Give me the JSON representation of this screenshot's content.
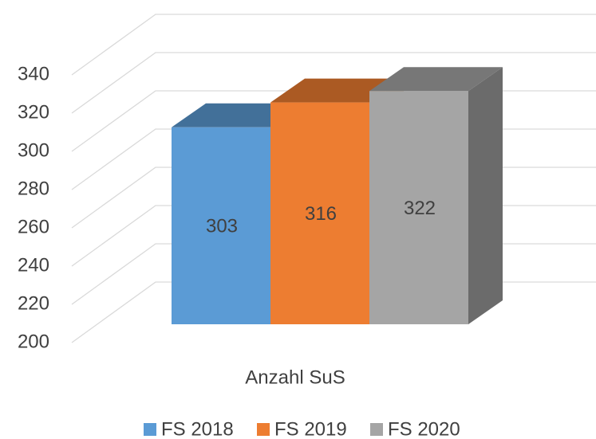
{
  "chart_data": {
    "type": "bar3d",
    "categories": [
      "Anzahl SuS"
    ],
    "series": [
      {
        "name": "FS 2018",
        "color": "#5b9bd5",
        "values": [
          303
        ]
      },
      {
        "name": "FS 2019",
        "color": "#ed7d31",
        "values": [
          316
        ]
      },
      {
        "name": "FS 2020",
        "color": "#a5a5a5",
        "values": [
          322
        ]
      }
    ],
    "ylim": [
      200,
      340
    ],
    "yticks": [
      200,
      220,
      240,
      260,
      280,
      300,
      320,
      340
    ],
    "grid": true,
    "legend": "bottom"
  }
}
